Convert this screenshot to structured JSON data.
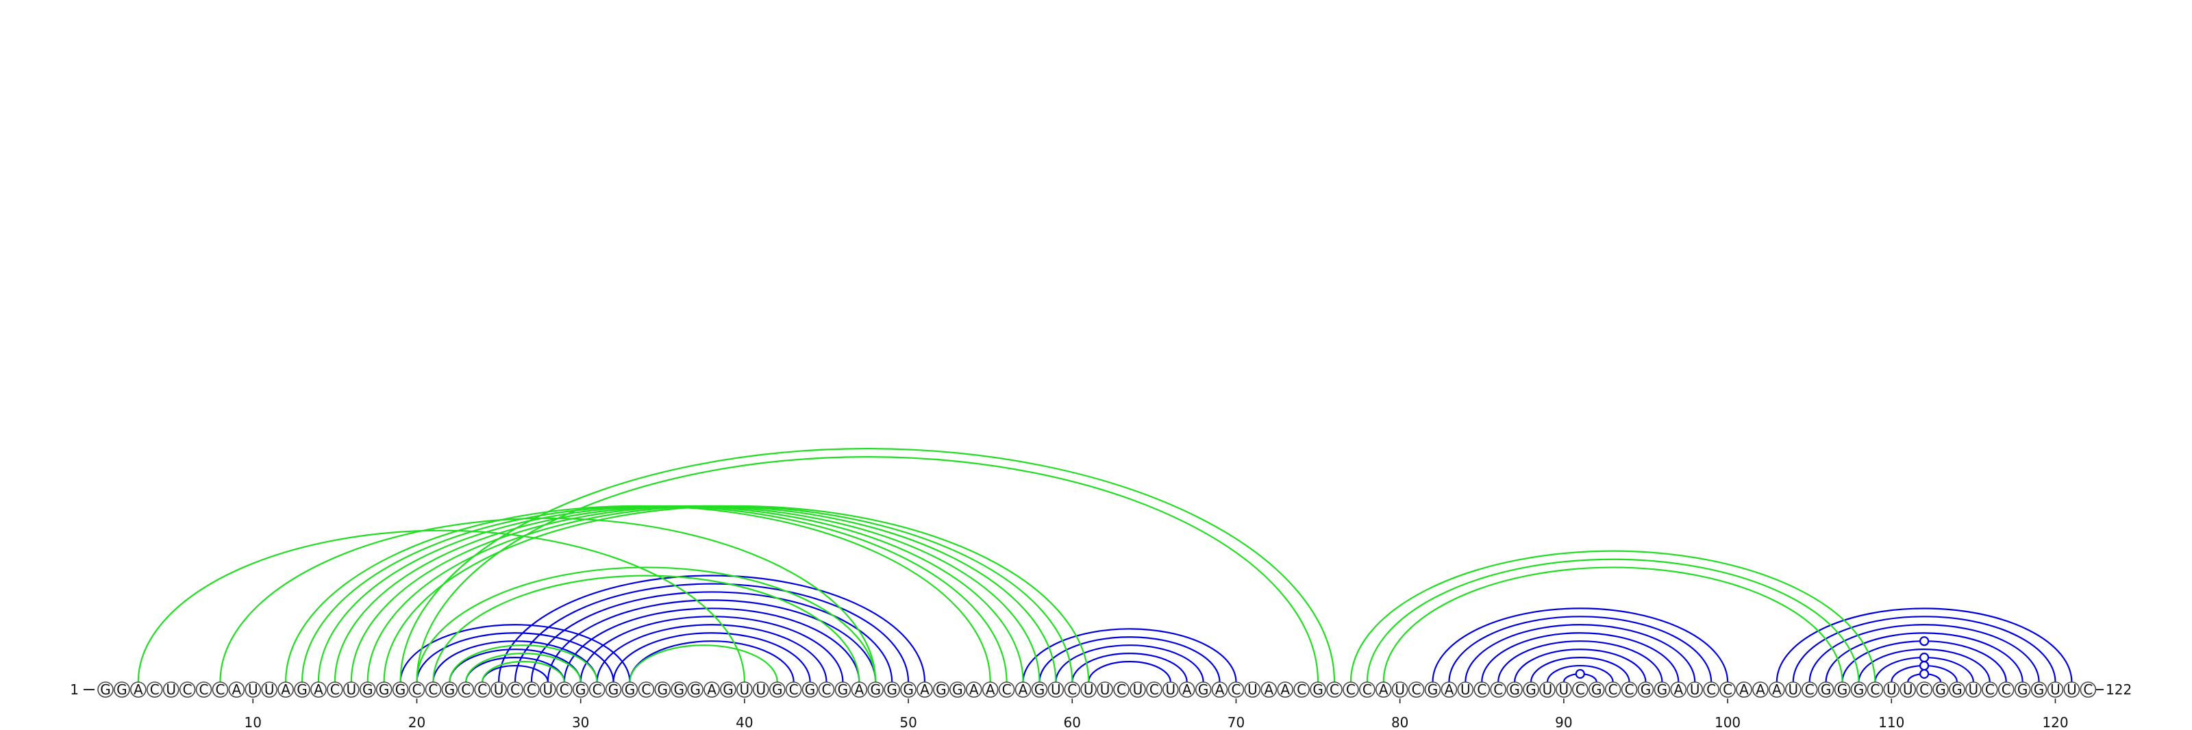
{
  "sequence": "GGACUCCCAUUAGACUGGGCCGCCUCCUCGCGGCGGGAGUUGCGCGAGGGAGGAACAGUCUUCUCUAGACUAACGCCCAUCGAUCCGGUUCGCCGGAUCCAAAUCGGGCUUCGGUCCGGUUC",
  "start_label": "1",
  "end_label": "122",
  "ticks": [
    10,
    20,
    30,
    40,
    50,
    60,
    70,
    80,
    90,
    100,
    110,
    120
  ],
  "colors": {
    "blue": "#0000dd",
    "green": "#22dd22",
    "marker": "#0000dd"
  },
  "structures": [
    {
      "color": "blue",
      "pairs": [
        [
          19,
          33
        ],
        [
          20,
          32
        ],
        [
          21,
          31
        ],
        [
          22,
          30
        ],
        [
          23,
          29
        ],
        [
          24,
          28
        ],
        [
          25,
          51
        ],
        [
          26,
          50
        ],
        [
          27,
          49
        ],
        [
          28,
          48
        ],
        [
          29,
          47
        ],
        [
          30,
          46
        ],
        [
          31,
          45
        ],
        [
          32,
          44
        ],
        [
          33,
          43
        ],
        [
          57,
          70
        ],
        [
          58,
          69
        ],
        [
          59,
          68
        ],
        [
          60,
          67
        ],
        [
          61,
          66
        ],
        [
          82,
          100
        ],
        [
          83,
          99
        ],
        [
          84,
          98
        ],
        [
          85,
          97
        ],
        [
          86,
          96
        ],
        [
          87,
          95
        ],
        [
          88,
          94
        ],
        [
          89,
          93
        ],
        [
          90,
          92
        ],
        [
          103,
          121
        ],
        [
          104,
          120
        ],
        [
          105,
          119
        ],
        [
          106,
          118
        ],
        [
          107,
          117
        ],
        [
          108,
          116
        ],
        [
          109,
          115
        ],
        [
          110,
          114
        ],
        [
          111,
          113
        ]
      ],
      "markers": [
        [
          90,
          92
        ],
        [
          111,
          113
        ],
        [
          110,
          114
        ],
        [
          109,
          115
        ],
        [
          107,
          117
        ]
      ]
    },
    {
      "color": "green",
      "pairs": [
        [
          3,
          40
        ],
        [
          8,
          48
        ],
        [
          12,
          55
        ],
        [
          13,
          56
        ],
        [
          14,
          57
        ],
        [
          15,
          58
        ],
        [
          16,
          59
        ],
        [
          17,
          60
        ],
        [
          18,
          61
        ],
        [
          19,
          76
        ],
        [
          20,
          75
        ],
        [
          20,
          48
        ],
        [
          21,
          47
        ],
        [
          22,
          31
        ],
        [
          23,
          30
        ],
        [
          24,
          29
        ],
        [
          33,
          42
        ],
        [
          77,
          109
        ],
        [
          78,
          108
        ],
        [
          79,
          107
        ]
      ]
    }
  ]
}
